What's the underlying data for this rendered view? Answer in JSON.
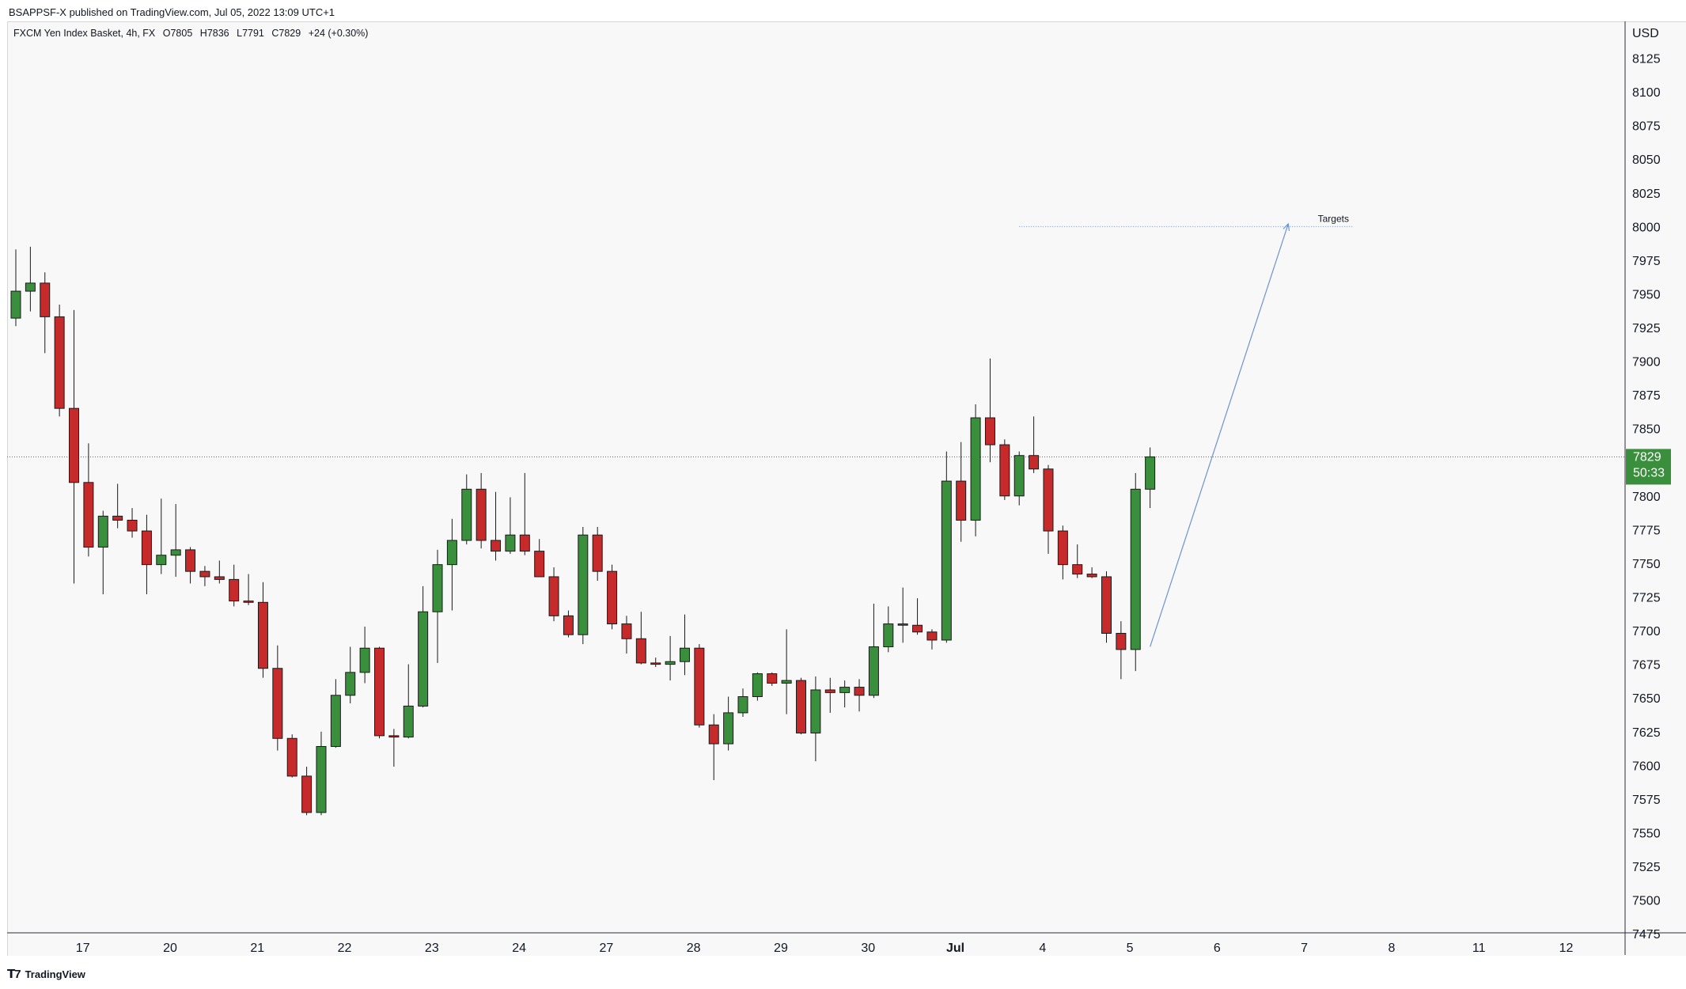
{
  "header": {
    "published": "BSAPPSF-X published on TradingView.com, Jul 05, 2022 13:09 UTC+1"
  },
  "legend": {
    "symbol": "FXCM Yen Index Basket, 4h, FX",
    "open_label": "O",
    "open": "7805",
    "high_label": "H",
    "high": "7836",
    "low_label": "L",
    "low": "7791",
    "close_label": "C",
    "close": "7829",
    "change": "+24 (+0.30%)"
  },
  "price_axis": {
    "currency": "USD",
    "last_price": "7829",
    "countdown": "50:33"
  },
  "footer": {
    "brand": "TradingView",
    "logo_icon": "tradingview-logo-icon"
  },
  "colors": {
    "up": "#3a8f3c",
    "down": "#c62a2a",
    "wick": "#1a1a1a",
    "drawing": "#6d93d1",
    "last_price_line": "#3a8f3c"
  },
  "annotation": {
    "text": "Targets",
    "level": 8000,
    "arrow_from": {
      "bar": 78,
      "price": 7688
    },
    "arrow_to": {
      "bar": 87.5,
      "price": 8002
    },
    "line_from_bar": 69,
    "line_to_bar": 92
  },
  "chart_data": {
    "type": "candlestick",
    "ylim": [
      7466,
      8150
    ],
    "yticks": [
      8125,
      8100,
      8075,
      8050,
      8025,
      8000,
      7975,
      7950,
      7925,
      7900,
      7875,
      7850,
      7825,
      7800,
      7775,
      7750,
      7725,
      7700,
      7675,
      7650,
      7625,
      7600,
      7575,
      7550,
      7525,
      7500,
      7475
    ],
    "x_ticks": [
      {
        "label": "17",
        "bar": 4.5
      },
      {
        "label": "20",
        "bar": 10.5
      },
      {
        "label": "21",
        "bar": 16.5
      },
      {
        "label": "22",
        "bar": 22.5
      },
      {
        "label": "23",
        "bar": 28.5
      },
      {
        "label": "24",
        "bar": 34.5
      },
      {
        "label": "27",
        "bar": 40.5
      },
      {
        "label": "28",
        "bar": 46.5
      },
      {
        "label": "29",
        "bar": 52.5
      },
      {
        "label": "30",
        "bar": 58.5
      },
      {
        "label": "Jul",
        "bar": 64.5
      },
      {
        "label": "4",
        "bar": 70.5
      },
      {
        "label": "5",
        "bar": 76.5
      },
      {
        "label": "6",
        "bar": 82.5
      },
      {
        "label": "7",
        "bar": 88.5
      },
      {
        "label": "8",
        "bar": 94.5
      },
      {
        "label": "11",
        "bar": 100.5
      },
      {
        "label": "12",
        "bar": 106.5
      }
    ],
    "candles": [
      {
        "o": 7932,
        "h": 7983,
        "l": 7926,
        "c": 7952
      },
      {
        "o": 7952,
        "h": 7985,
        "l": 7937,
        "c": 7958
      },
      {
        "o": 7958,
        "h": 7966,
        "l": 7906,
        "c": 7933
      },
      {
        "o": 7933,
        "h": 7942,
        "l": 7859,
        "c": 7865
      },
      {
        "o": 7865,
        "h": 7938,
        "l": 7735,
        "c": 7810
      },
      {
        "o": 7810,
        "h": 7839,
        "l": 7755,
        "c": 7762
      },
      {
        "o": 7762,
        "h": 7789,
        "l": 7727,
        "c": 7785
      },
      {
        "o": 7785,
        "h": 7809,
        "l": 7776,
        "c": 7782
      },
      {
        "o": 7782,
        "h": 7791,
        "l": 7769,
        "c": 7774
      },
      {
        "o": 7774,
        "h": 7786,
        "l": 7727,
        "c": 7749
      },
      {
        "o": 7749,
        "h": 7798,
        "l": 7742,
        "c": 7756
      },
      {
        "o": 7756,
        "h": 7794,
        "l": 7740,
        "c": 7760
      },
      {
        "o": 7760,
        "h": 7762,
        "l": 7735,
        "c": 7744
      },
      {
        "o": 7744,
        "h": 7748,
        "l": 7733,
        "c": 7740
      },
      {
        "o": 7740,
        "h": 7752,
        "l": 7735,
        "c": 7738
      },
      {
        "o": 7738,
        "h": 7749,
        "l": 7718,
        "c": 7722
      },
      {
        "o": 7722,
        "h": 7742,
        "l": 7719,
        "c": 7721
      },
      {
        "o": 7721,
        "h": 7736,
        "l": 7665,
        "c": 7672
      },
      {
        "o": 7672,
        "h": 7689,
        "l": 7611,
        "c": 7620
      },
      {
        "o": 7620,
        "h": 7623,
        "l": 7591,
        "c": 7592
      },
      {
        "o": 7592,
        "h": 7599,
        "l": 7563,
        "c": 7565
      },
      {
        "o": 7565,
        "h": 7625,
        "l": 7563,
        "c": 7614
      },
      {
        "o": 7614,
        "h": 7664,
        "l": 7613,
        "c": 7652
      },
      {
        "o": 7652,
        "h": 7688,
        "l": 7646,
        "c": 7669
      },
      {
        "o": 7669,
        "h": 7703,
        "l": 7661,
        "c": 7687
      },
      {
        "o": 7687,
        "h": 7688,
        "l": 7620,
        "c": 7622
      },
      {
        "o": 7622,
        "h": 7627,
        "l": 7599,
        "c": 7621
      },
      {
        "o": 7621,
        "h": 7675,
        "l": 7620,
        "c": 7644
      },
      {
        "o": 7644,
        "h": 7733,
        "l": 7643,
        "c": 7714
      },
      {
        "o": 7714,
        "h": 7760,
        "l": 7676,
        "c": 7749
      },
      {
        "o": 7749,
        "h": 7783,
        "l": 7715,
        "c": 7767
      },
      {
        "o": 7767,
        "h": 7816,
        "l": 7764,
        "c": 7805
      },
      {
        "o": 7805,
        "h": 7817,
        "l": 7761,
        "c": 7767
      },
      {
        "o": 7767,
        "h": 7803,
        "l": 7752,
        "c": 7759
      },
      {
        "o": 7759,
        "h": 7799,
        "l": 7757,
        "c": 7771
      },
      {
        "o": 7771,
        "h": 7817,
        "l": 7756,
        "c": 7759
      },
      {
        "o": 7759,
        "h": 7768,
        "l": 7740,
        "c": 7740
      },
      {
        "o": 7740,
        "h": 7747,
        "l": 7707,
        "c": 7711
      },
      {
        "o": 7711,
        "h": 7715,
        "l": 7695,
        "c": 7697
      },
      {
        "o": 7697,
        "h": 7777,
        "l": 7690,
        "c": 7771
      },
      {
        "o": 7771,
        "h": 7777,
        "l": 7737,
        "c": 7744
      },
      {
        "o": 7744,
        "h": 7749,
        "l": 7701,
        "c": 7705
      },
      {
        "o": 7705,
        "h": 7711,
        "l": 7683,
        "c": 7694
      },
      {
        "o": 7694,
        "h": 7714,
        "l": 7675,
        "c": 7676
      },
      {
        "o": 7676,
        "h": 7680,
        "l": 7673,
        "c": 7675
      },
      {
        "o": 7675,
        "h": 7696,
        "l": 7663,
        "c": 7677
      },
      {
        "o": 7677,
        "h": 7712,
        "l": 7667,
        "c": 7687
      },
      {
        "o": 7687,
        "h": 7690,
        "l": 7628,
        "c": 7630
      },
      {
        "o": 7630,
        "h": 7638,
        "l": 7589,
        "c": 7616
      },
      {
        "o": 7616,
        "h": 7651,
        "l": 7611,
        "c": 7639
      },
      {
        "o": 7639,
        "h": 7657,
        "l": 7636,
        "c": 7651
      },
      {
        "o": 7651,
        "h": 7669,
        "l": 7648,
        "c": 7668
      },
      {
        "o": 7668,
        "h": 7669,
        "l": 7659,
        "c": 7661
      },
      {
        "o": 7661,
        "h": 7701,
        "l": 7638,
        "c": 7663
      },
      {
        "o": 7663,
        "h": 7665,
        "l": 7623,
        "c": 7624
      },
      {
        "o": 7624,
        "h": 7666,
        "l": 7603,
        "c": 7656
      },
      {
        "o": 7656,
        "h": 7665,
        "l": 7639,
        "c": 7654
      },
      {
        "o": 7654,
        "h": 7663,
        "l": 7643,
        "c": 7658
      },
      {
        "o": 7658,
        "h": 7664,
        "l": 7640,
        "c": 7652
      },
      {
        "o": 7652,
        "h": 7720,
        "l": 7650,
        "c": 7688
      },
      {
        "o": 7688,
        "h": 7718,
        "l": 7684,
        "c": 7705
      },
      {
        "o": 7705,
        "h": 7732,
        "l": 7691,
        "c": 7704
      },
      {
        "o": 7704,
        "h": 7724,
        "l": 7697,
        "c": 7699
      },
      {
        "o": 7699,
        "h": 7701,
        "l": 7686,
        "c": 7693
      },
      {
        "o": 7693,
        "h": 7833,
        "l": 7691,
        "c": 7811
      },
      {
        "o": 7811,
        "h": 7840,
        "l": 7766,
        "c": 7782
      },
      {
        "o": 7782,
        "h": 7868,
        "l": 7770,
        "c": 7858
      },
      {
        "o": 7858,
        "h": 7902,
        "l": 7825,
        "c": 7838
      },
      {
        "o": 7838,
        "h": 7842,
        "l": 7797,
        "c": 7800
      },
      {
        "o": 7800,
        "h": 7833,
        "l": 7793,
        "c": 7830
      },
      {
        "o": 7830,
        "h": 7859,
        "l": 7817,
        "c": 7820
      },
      {
        "o": 7820,
        "h": 7823,
        "l": 7757,
        "c": 7774
      },
      {
        "o": 7774,
        "h": 7778,
        "l": 7738,
        "c": 7749
      },
      {
        "o": 7749,
        "h": 7764,
        "l": 7739,
        "c": 7742
      },
      {
        "o": 7742,
        "h": 7747,
        "l": 7739,
        "c": 7740
      },
      {
        "o": 7740,
        "h": 7744,
        "l": 7691,
        "c": 7698
      },
      {
        "o": 7698,
        "h": 7707,
        "l": 7664,
        "c": 7686
      },
      {
        "o": 7686,
        "h": 7817,
        "l": 7670,
        "c": 7805
      },
      {
        "o": 7805,
        "h": 7836,
        "l": 7791,
        "c": 7829
      }
    ]
  }
}
